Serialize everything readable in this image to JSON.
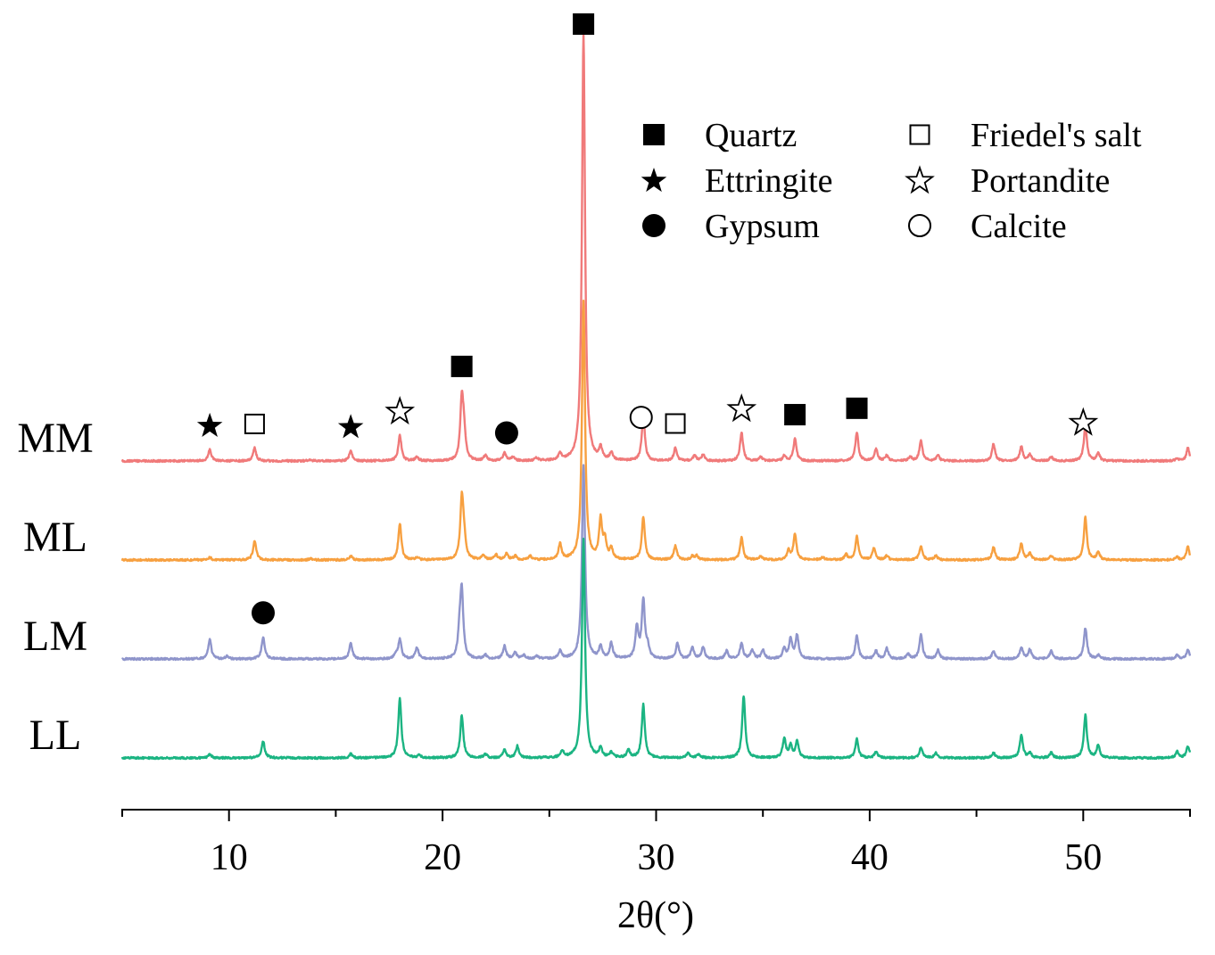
{
  "chart_data": {
    "type": "line",
    "title": "",
    "xlabel": "2θ(°)",
    "ylabel": "",
    "xlim": [
      5,
      55
    ],
    "xticks": [
      10,
      20,
      30,
      40,
      50
    ],
    "xtick_labels": [
      "10",
      "20",
      "30",
      "40",
      "50"
    ],
    "grid": false,
    "legend_position": "top-right",
    "legend": [
      {
        "marker": "filled-square",
        "label": "Quartz"
      },
      {
        "marker": "filled-star",
        "label": "Ettringite"
      },
      {
        "marker": "filled-circle",
        "label": "Gypsum"
      },
      {
        "marker": "open-square",
        "label": "Friedel's salt"
      },
      {
        "marker": "open-star",
        "label": "Portandite"
      },
      {
        "marker": "open-circle",
        "label": "Calcite"
      }
    ],
    "series": [
      {
        "name": "MM",
        "color": "#F07A7A",
        "offset": 3,
        "peaks": [
          [
            9.1,
            9
          ],
          [
            11.2,
            10
          ],
          [
            13.8,
            1
          ],
          [
            15.7,
            8
          ],
          [
            18.0,
            20
          ],
          [
            18.8,
            3
          ],
          [
            20.9,
            46
          ],
          [
            21.0,
            20
          ],
          [
            22.0,
            4
          ],
          [
            22.9,
            6
          ],
          [
            23.3,
            3
          ],
          [
            24.4,
            2
          ],
          [
            25.5,
            5
          ],
          [
            26.6,
            330
          ],
          [
            27.4,
            9
          ],
          [
            27.9,
            6
          ],
          [
            29.4,
            35
          ],
          [
            30.9,
            10
          ],
          [
            31.8,
            4
          ],
          [
            32.2,
            5
          ],
          [
            34.0,
            22
          ],
          [
            34.9,
            3
          ],
          [
            36.0,
            4
          ],
          [
            36.5,
            17
          ],
          [
            39.4,
            22
          ],
          [
            40.3,
            9
          ],
          [
            40.8,
            4
          ],
          [
            41.9,
            3
          ],
          [
            42.4,
            16
          ],
          [
            43.2,
            4
          ],
          [
            45.8,
            13
          ],
          [
            47.1,
            11
          ],
          [
            47.5,
            5
          ],
          [
            48.5,
            3
          ],
          [
            50.1,
            27
          ],
          [
            50.7,
            6
          ],
          [
            54.4,
            2
          ],
          [
            54.9,
            10
          ]
        ]
      },
      {
        "name": "ML",
        "color": "#F7A040",
        "offset": 2,
        "peaks": [
          [
            9.1,
            2
          ],
          [
            11.2,
            15
          ],
          [
            13.8,
            1
          ],
          [
            15.7,
            3
          ],
          [
            18.0,
            28
          ],
          [
            18.8,
            2
          ],
          [
            20.9,
            46
          ],
          [
            21.0,
            15
          ],
          [
            21.9,
            4
          ],
          [
            22.5,
            4
          ],
          [
            23.0,
            5
          ],
          [
            23.4,
            3
          ],
          [
            24.1,
            3
          ],
          [
            25.5,
            12
          ],
          [
            26.6,
            200
          ],
          [
            27.4,
            30
          ],
          [
            27.6,
            14
          ],
          [
            27.9,
            8
          ],
          [
            29.4,
            33
          ],
          [
            30.9,
            11
          ],
          [
            31.7,
            3
          ],
          [
            31.9,
            3
          ],
          [
            34.0,
            17
          ],
          [
            34.9,
            3
          ],
          [
            36.2,
            7
          ],
          [
            36.5,
            20
          ],
          [
            37.8,
            2
          ],
          [
            38.9,
            4
          ],
          [
            39.4,
            18
          ],
          [
            40.2,
            9
          ],
          [
            40.8,
            3
          ],
          [
            42.4,
            11
          ],
          [
            43.1,
            3
          ],
          [
            45.8,
            10
          ],
          [
            47.1,
            13
          ],
          [
            47.5,
            5
          ],
          [
            48.5,
            3
          ],
          [
            50.1,
            33
          ],
          [
            50.7,
            6
          ],
          [
            54.4,
            2
          ],
          [
            54.9,
            10
          ]
        ]
      },
      {
        "name": "LM",
        "color": "#8F95CB",
        "offset": 1,
        "peaks": [
          [
            9.1,
            15
          ],
          [
            9.9,
            2
          ],
          [
            11.6,
            17
          ],
          [
            15.7,
            12
          ],
          [
            17.8,
            3
          ],
          [
            18.0,
            15
          ],
          [
            18.8,
            9
          ],
          [
            20.8,
            18
          ],
          [
            20.9,
            50
          ],
          [
            22.0,
            3
          ],
          [
            22.9,
            10
          ],
          [
            23.4,
            5
          ],
          [
            23.8,
            3
          ],
          [
            24.4,
            2
          ],
          [
            25.5,
            6
          ],
          [
            26.6,
            150
          ],
          [
            27.4,
            9
          ],
          [
            27.9,
            12
          ],
          [
            29.1,
            24
          ],
          [
            29.4,
            45
          ],
          [
            29.6,
            8
          ],
          [
            31.0,
            12
          ],
          [
            31.7,
            9
          ],
          [
            32.2,
            9
          ],
          [
            33.3,
            6
          ],
          [
            34.0,
            12
          ],
          [
            34.5,
            7
          ],
          [
            35.0,
            7
          ],
          [
            36.0,
            8
          ],
          [
            36.3,
            15
          ],
          [
            36.6,
            18
          ],
          [
            39.4,
            18
          ],
          [
            40.3,
            6
          ],
          [
            40.8,
            8
          ],
          [
            41.8,
            4
          ],
          [
            42.4,
            19
          ],
          [
            43.2,
            7
          ],
          [
            45.8,
            6
          ],
          [
            47.1,
            9
          ],
          [
            47.5,
            7
          ],
          [
            48.5,
            6
          ],
          [
            50.1,
            24
          ],
          [
            50.7,
            3
          ],
          [
            54.4,
            3
          ],
          [
            54.9,
            7
          ]
        ]
      },
      {
        "name": "LL",
        "color": "#1BB482",
        "offset": 0,
        "peaks": [
          [
            9.1,
            3
          ],
          [
            11.6,
            13
          ],
          [
            15.7,
            3
          ],
          [
            18.0,
            46
          ],
          [
            18.9,
            2
          ],
          [
            20.9,
            33
          ],
          [
            22.0,
            3
          ],
          [
            22.9,
            6
          ],
          [
            23.5,
            9
          ],
          [
            25.6,
            5
          ],
          [
            26.6,
            170
          ],
          [
            27.4,
            7
          ],
          [
            27.9,
            4
          ],
          [
            28.7,
            6
          ],
          [
            29.4,
            41
          ],
          [
            31.5,
            4
          ],
          [
            32.0,
            3
          ],
          [
            34.1,
            48
          ],
          [
            36.0,
            15
          ],
          [
            36.3,
            9
          ],
          [
            36.6,
            13
          ],
          [
            39.4,
            15
          ],
          [
            40.3,
            5
          ],
          [
            42.4,
            8
          ],
          [
            43.1,
            4
          ],
          [
            45.8,
            4
          ],
          [
            47.1,
            18
          ],
          [
            47.5,
            4
          ],
          [
            48.5,
            4
          ],
          [
            50.1,
            33
          ],
          [
            50.7,
            10
          ],
          [
            54.4,
            5
          ],
          [
            54.9,
            9
          ]
        ]
      }
    ],
    "annotations": [
      {
        "series": "MM",
        "marker": "filled-star",
        "x": 9.1
      },
      {
        "series": "MM",
        "marker": "open-square",
        "x": 11.2
      },
      {
        "series": "MM",
        "marker": "filled-star",
        "x": 15.7
      },
      {
        "series": "MM",
        "marker": "open-star",
        "x": 18.0
      },
      {
        "series": "MM",
        "marker": "filled-square",
        "x": 20.9
      },
      {
        "series": "MM",
        "marker": "filled-circle",
        "x": 23.0
      },
      {
        "series": "MM",
        "marker": "filled-square",
        "x": 26.6
      },
      {
        "series": "MM",
        "marker": "open-circle",
        "x": 29.3
      },
      {
        "series": "MM",
        "marker": "open-square",
        "x": 30.9
      },
      {
        "series": "MM",
        "marker": "open-star",
        "x": 34.0
      },
      {
        "series": "MM",
        "marker": "filled-square",
        "x": 36.5
      },
      {
        "series": "MM",
        "marker": "filled-square",
        "x": 39.4
      },
      {
        "series": "MM",
        "marker": "open-star",
        "x": 50.0
      },
      {
        "series": "LM",
        "marker": "filled-circle",
        "x": 11.6
      }
    ]
  }
}
